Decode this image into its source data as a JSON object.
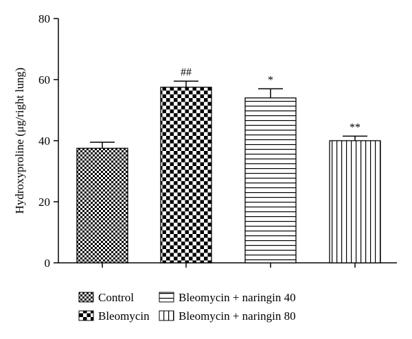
{
  "chart_data": {
    "type": "bar",
    "title": "",
    "xlabel": "",
    "ylabel": "Hydroxyproline (μg/right lung)",
    "ylim": [
      0,
      80
    ],
    "yticks": [
      0,
      20,
      40,
      60,
      80
    ],
    "grid": false,
    "legend_position": "bottom",
    "categories": [
      "Control",
      "Bleomycin",
      "Bleomycin + naringin 40",
      "Bleomycin + naringin 80"
    ],
    "values": [
      37.5,
      57.5,
      54,
      40
    ],
    "errors": [
      2,
      2,
      3,
      1.5
    ],
    "annotations": [
      "",
      "##",
      "*",
      "**"
    ],
    "patterns": [
      "fine-checker",
      "coarse-checker",
      "horizontal-lines",
      "vertical-lines"
    ]
  }
}
